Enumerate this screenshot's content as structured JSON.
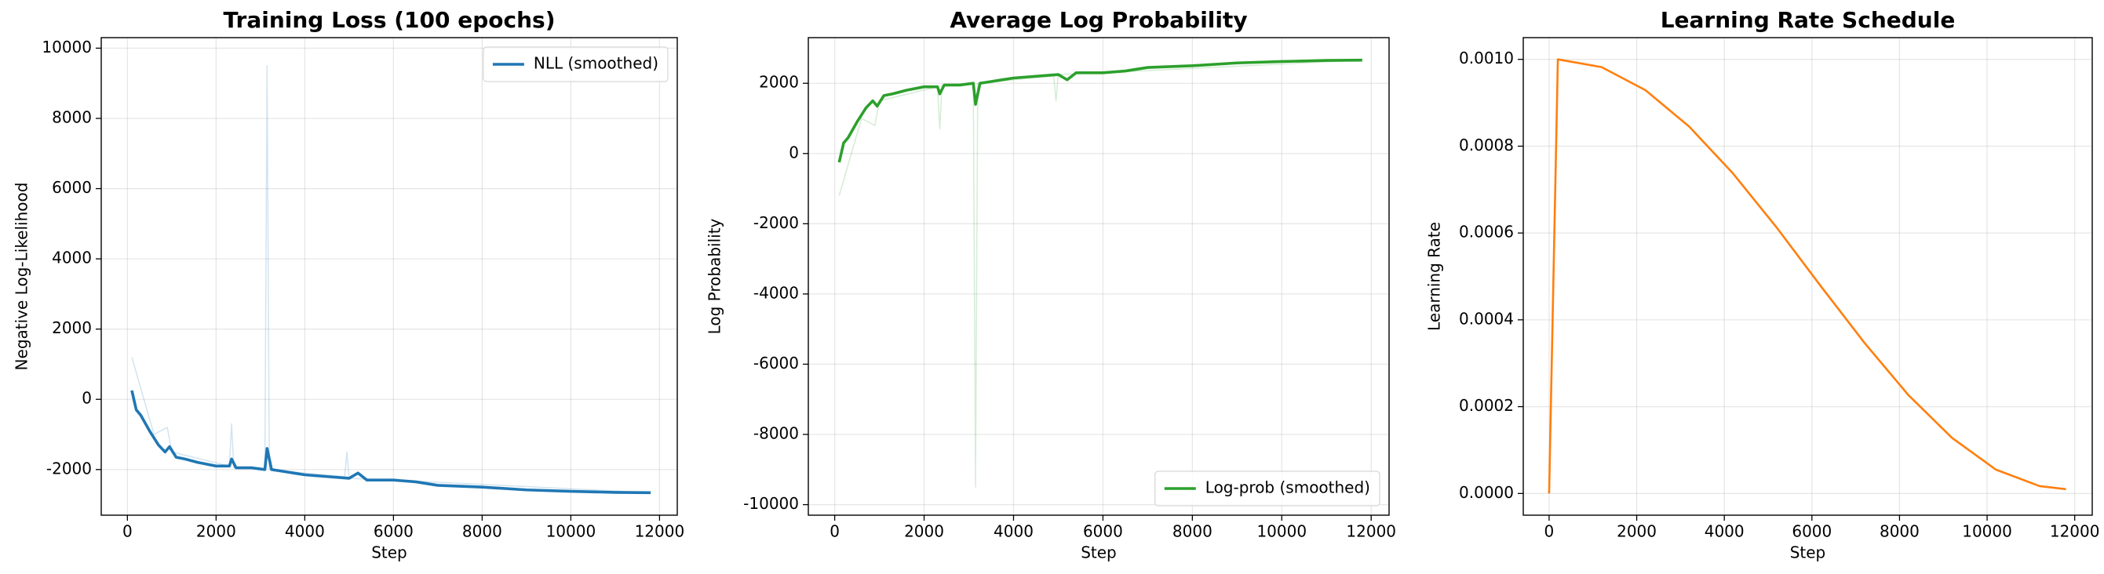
{
  "chart_data": [
    {
      "type": "line",
      "title": "Training Loss (100 epochs)",
      "xlabel": "Step",
      "ylabel": "Negative Log-Likelihood",
      "xlim": [
        -590,
        12400
      ],
      "xticks": [
        0,
        2000,
        4000,
        6000,
        8000,
        10000,
        12000
      ],
      "ylim": [
        -3300,
        10300
      ],
      "yticks": [
        -2000,
        0,
        2000,
        4000,
        6000,
        8000,
        10000
      ],
      "grid": true,
      "legend": "upper right",
      "series": [
        {
          "color": "#1f77b4",
          "alpha": 0.2,
          "x": [
            100,
            600,
            900,
            1000,
            2300,
            2350,
            2400,
            3100,
            3150,
            3200,
            4000,
            4900,
            4950,
            5000,
            6000,
            11800
          ],
          "values": [
            1200,
            -1000,
            -800,
            -1500,
            -1900,
            -700,
            -1950,
            -2000,
            9500,
            -2000,
            -2100,
            -2200,
            -1500,
            -2250,
            -2300,
            -2660
          ]
        },
        {
          "name": "NLL (smoothed)",
          "color": "#1f77b4",
          "x": [
            100,
            200,
            300,
            500,
            700,
            850,
            950,
            1100,
            1300,
            1600,
            2000,
            2300,
            2350,
            2450,
            2800,
            3100,
            3150,
            3250,
            3500,
            4000,
            4500,
            5000,
            5200,
            5400,
            6000,
            6500,
            7000,
            8000,
            9000,
            10000,
            11000,
            11800
          ],
          "values": [
            250,
            -300,
            -450,
            -900,
            -1300,
            -1500,
            -1350,
            -1650,
            -1700,
            -1800,
            -1900,
            -1900,
            -1700,
            -1950,
            -1950,
            -2000,
            -1400,
            -2000,
            -2050,
            -2150,
            -2200,
            -2250,
            -2100,
            -2300,
            -2300,
            -2350,
            -2450,
            -2500,
            -2580,
            -2620,
            -2650,
            -2660
          ]
        }
      ]
    },
    {
      "type": "line",
      "title": "Average Log Probability",
      "xlabel": "Step",
      "ylabel": "Log Probability",
      "xlim": [
        -590,
        12400
      ],
      "xticks": [
        0,
        2000,
        4000,
        6000,
        8000,
        10000,
        12000
      ],
      "ylim": [
        -10300,
        3300
      ],
      "yticks": [
        -10000,
        -8000,
        -6000,
        -4000,
        -2000,
        0,
        2000
      ],
      "grid": true,
      "legend": "lower right",
      "series": [
        {
          "color": "#2ca02c",
          "alpha": 0.2,
          "x": [
            100,
            600,
            900,
            1000,
            2300,
            2350,
            2400,
            3100,
            3150,
            3200,
            4000,
            4900,
            4950,
            5000,
            6000,
            11800
          ],
          "values": [
            -1200,
            1000,
            800,
            1500,
            1900,
            700,
            1950,
            2000,
            -9500,
            2000,
            2100,
            2200,
            1500,
            2250,
            2300,
            2660
          ]
        },
        {
          "name": "Log-prob (smoothed)",
          "color": "#2ca02c",
          "x": [
            100,
            200,
            300,
            500,
            700,
            850,
            950,
            1100,
            1300,
            1600,
            2000,
            2300,
            2350,
            2450,
            2800,
            3100,
            3150,
            3250,
            3500,
            4000,
            4500,
            5000,
            5200,
            5400,
            6000,
            6500,
            7000,
            8000,
            9000,
            10000,
            11000,
            11800
          ],
          "values": [
            -250,
            300,
            450,
            900,
            1300,
            1500,
            1350,
            1650,
            1700,
            1800,
            1900,
            1900,
            1700,
            1950,
            1950,
            2000,
            1400,
            2000,
            2050,
            2150,
            2200,
            2250,
            2100,
            2300,
            2300,
            2350,
            2450,
            2500,
            2580,
            2620,
            2650,
            2660
          ]
        }
      ]
    },
    {
      "type": "line",
      "title": "Learning Rate Schedule",
      "xlabel": "Step",
      "ylabel": "Learning Rate",
      "xlim": [
        -590,
        12400
      ],
      "xticks": [
        0,
        2000,
        4000,
        6000,
        8000,
        10000,
        12000
      ],
      "ylim": [
        -5e-05,
        0.00105
      ],
      "yticks": [
        {
          "value": 0,
          "label": "0.0000"
        },
        {
          "value": 0.0002,
          "label": "0.0002"
        },
        {
          "value": 0.0004,
          "label": "0.0004"
        },
        {
          "value": 0.0006,
          "label": "0.0006"
        },
        {
          "value": 0.0008,
          "label": "0.0008"
        },
        {
          "value": 0.001,
          "label": "0.0010"
        }
      ],
      "grid": true,
      "series": [
        {
          "color": "#ff7f0e",
          "x": [
            0,
            200,
            1200,
            2200,
            3200,
            4200,
            5200,
            6200,
            7200,
            8200,
            9200,
            10200,
            11200,
            11800
          ],
          "values": [
            0,
            0.001,
            0.000982,
            0.000929,
            0.000845,
            0.000737,
            0.000612,
            0.000478,
            0.000347,
            0.000227,
            0.000128,
            5.5e-05,
            1.7e-05,
            1e-05
          ]
        }
      ]
    }
  ]
}
